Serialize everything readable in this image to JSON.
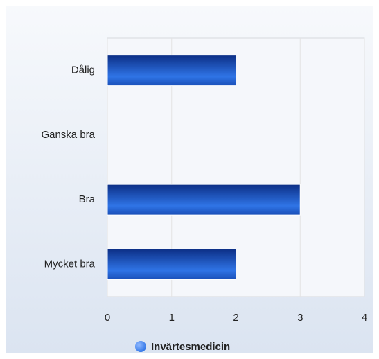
{
  "chart_data": {
    "type": "hbar",
    "categories": [
      "Dålig",
      "Ganska bra",
      "Bra",
      "Mycket bra"
    ],
    "series": [
      {
        "name": "Invärtesmedicin",
        "color": "#2f74e6",
        "values": [
          2,
          0,
          3,
          2
        ]
      }
    ],
    "xlim": [
      0,
      4
    ],
    "xticks": [
      0,
      1,
      2,
      3,
      4
    ],
    "grid": true,
    "legend": "bottom"
  }
}
